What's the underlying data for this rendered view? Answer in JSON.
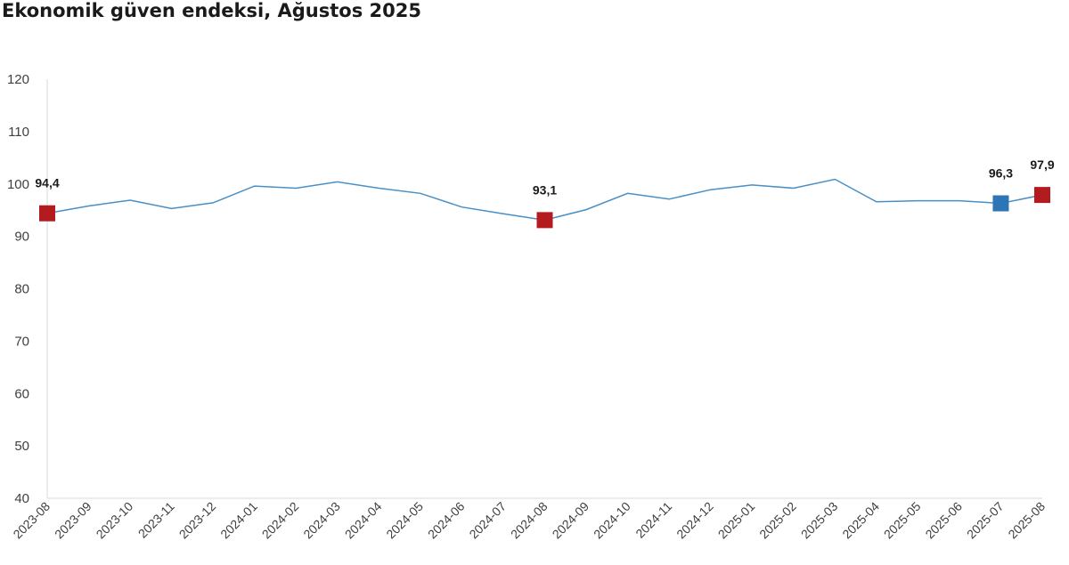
{
  "chart_data": {
    "type": "line",
    "title": "Ekonomik güven endeksi, Ağustos 2025",
    "xlabel": "",
    "ylabel": "",
    "ylim": [
      40,
      120
    ],
    "yticks": [
      40,
      50,
      60,
      70,
      80,
      90,
      100,
      110,
      120
    ],
    "grid": false,
    "categories": [
      "2023-08",
      "2023-09",
      "2023-10",
      "2023-11",
      "2023-12",
      "2024-01",
      "2024-02",
      "2024-03",
      "2024-04",
      "2024-05",
      "2024-06",
      "2024-07",
      "2024-08",
      "2024-09",
      "2024-10",
      "2024-11",
      "2024-12",
      "2025-01",
      "2025-02",
      "2025-03",
      "2025-04",
      "2025-05",
      "2025-06",
      "2025-07",
      "2025-08"
    ],
    "series": [
      {
        "values": [
          94.4,
          95.8,
          96.9,
          95.3,
          96.4,
          99.6,
          99.2,
          100.4,
          99.2,
          98.2,
          95.6,
          94.3,
          93.1,
          95.1,
          98.2,
          97.1,
          98.9,
          99.8,
          99.2,
          100.9,
          96.6,
          96.8,
          96.8,
          96.3,
          97.9
        ],
        "color": "#4a8fc4"
      }
    ],
    "markers": [
      {
        "index": 0,
        "label": "94,4",
        "color": "#b31b1f"
      },
      {
        "index": 12,
        "label": "93,1",
        "color": "#b31b1f"
      },
      {
        "index": 23,
        "label": "96,3",
        "color": "#2e75b6"
      },
      {
        "index": 24,
        "label": "97,9",
        "color": "#b31b1f"
      }
    ]
  }
}
